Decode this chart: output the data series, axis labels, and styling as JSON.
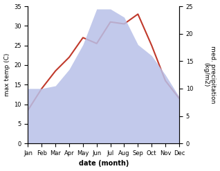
{
  "months": [
    "Jan",
    "Feb",
    "Mar",
    "Apr",
    "May",
    "Jun",
    "Jul",
    "Aug",
    "Sep",
    "Oct",
    "Nov",
    "Dec"
  ],
  "temp": [
    8.5,
    14.0,
    18.5,
    22.0,
    27.0,
    25.5,
    31.0,
    30.5,
    33.0,
    25.0,
    16.0,
    11.5
  ],
  "precip": [
    10.0,
    10.0,
    10.5,
    13.5,
    18.0,
    24.5,
    24.5,
    23.0,
    18.0,
    16.0,
    12.5,
    8.5
  ],
  "temp_color": "#c0392b",
  "precip_fill": "#b8c0e8",
  "ylim_temp": [
    0,
    35
  ],
  "ylim_precip": [
    0,
    25
  ],
  "ylabel_left": "max temp (C)",
  "ylabel_right": "med. precipitation\n(kg/m2)",
  "xlabel": "date (month)",
  "bg_color": "#ffffff"
}
